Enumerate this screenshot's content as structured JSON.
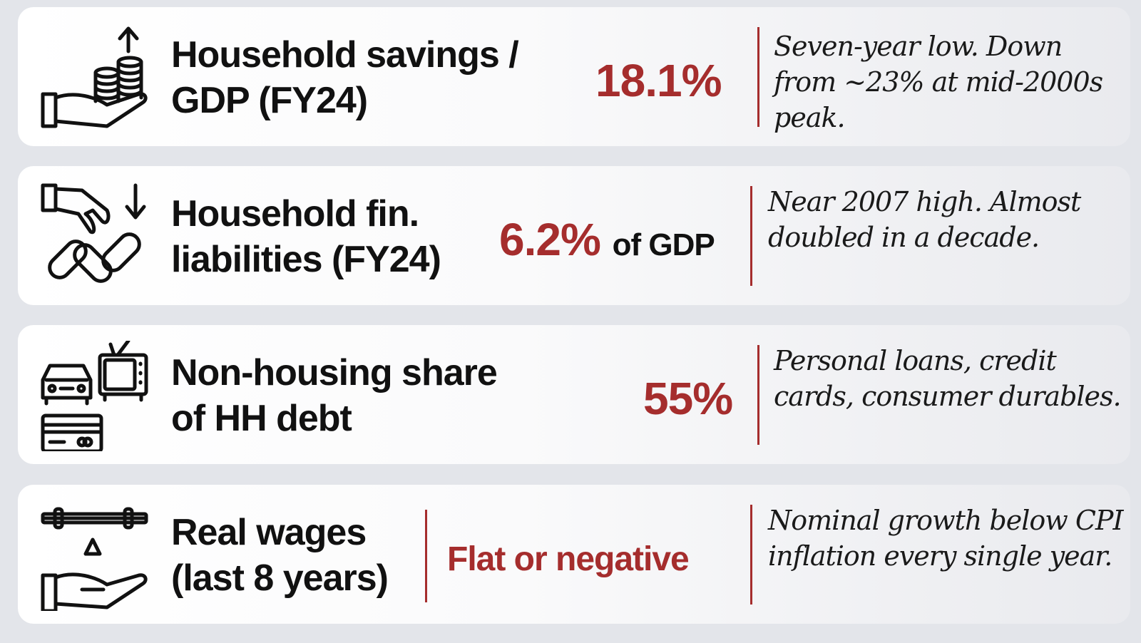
{
  "rows": [
    {
      "title_line1": "Household savings /",
      "title_line2": "GDP (FY24)",
      "value": "18.1%",
      "suffix": "",
      "note": "Seven-year low. Down from ~23% at mid-2000s peak.",
      "icon": "hand-with-coins-up-arrow-icon"
    },
    {
      "title_line1": "Household fin.",
      "title_line2": "liabilities (FY24)",
      "value": "6.2%",
      "suffix": "of GDP",
      "note": "Near 2007 high. Almost doubled in a decade.",
      "icon": "hand-down-arrow-chain-icon"
    },
    {
      "title_line1": "Non-housing share",
      "title_line2": "of HH debt",
      "value": "55%",
      "suffix": "",
      "note": "Personal loans, credit cards, consumer durables.",
      "icon": "car-tv-credit-card-icon"
    },
    {
      "title_line1": "Real wages",
      "title_line2": "(last 8 years)",
      "value": "Flat or negative",
      "suffix": "",
      "note": "Nominal growth below CPI inflation every single year.",
      "icon": "balance-scale-hand-icon"
    }
  ],
  "colors": {
    "accent": "#a52d2d",
    "text": "#111111",
    "background": "#e3e5ea"
  }
}
